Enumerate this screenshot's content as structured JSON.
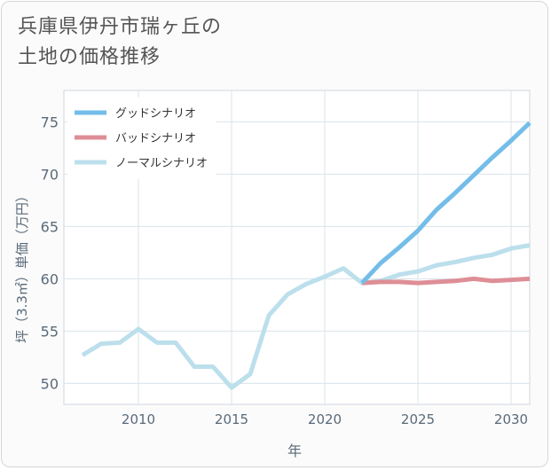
{
  "title_lines": [
    "兵庫県伊丹市瑞ヶ丘の",
    "土地の価格推移"
  ],
  "chart_data": {
    "type": "line",
    "xlabel": "年",
    "ylabel": "坪（3.3㎡）単価（万円）",
    "xlim": [
      2006,
      2031
    ],
    "ylim": [
      48,
      78
    ],
    "xticks": [
      2010,
      2015,
      2020,
      2025,
      2030
    ],
    "yticks": [
      50,
      55,
      60,
      65,
      70,
      75
    ],
    "grid": true,
    "legend_position": "top-left",
    "series": [
      {
        "name": "グッドシナリオ",
        "color": "#74bde9",
        "x": [
          2022,
          2023,
          2024,
          2025,
          2026,
          2027,
          2028,
          2029,
          2030,
          2031
        ],
        "y": [
          59.6,
          61.5,
          63.0,
          64.6,
          66.6,
          68.2,
          69.9,
          71.6,
          73.2,
          74.9
        ]
      },
      {
        "name": "バッドシナリオ",
        "color": "#de8e96",
        "x": [
          2022,
          2023,
          2024,
          2025,
          2026,
          2027,
          2028,
          2029,
          2030,
          2031
        ],
        "y": [
          59.6,
          59.7,
          59.7,
          59.6,
          59.7,
          59.8,
          60.0,
          59.8,
          59.9,
          60.0
        ]
      },
      {
        "name": "ノーマルシナリオ",
        "color": "#bcdfec",
        "x": [
          2007,
          2008,
          2009,
          2010,
          2011,
          2012,
          2013,
          2014,
          2015,
          2016,
          2017,
          2018,
          2019,
          2020,
          2021,
          2022,
          2023,
          2024,
          2025,
          2026,
          2027,
          2028,
          2029,
          2030,
          2031
        ],
        "y": [
          52.7,
          53.8,
          53.9,
          55.2,
          53.9,
          53.9,
          51.6,
          51.6,
          49.6,
          50.9,
          56.5,
          58.5,
          59.5,
          60.2,
          61.0,
          59.6,
          59.8,
          60.4,
          60.7,
          61.3,
          61.6,
          62.0,
          62.3,
          62.9,
          63.2
        ]
      }
    ]
  }
}
